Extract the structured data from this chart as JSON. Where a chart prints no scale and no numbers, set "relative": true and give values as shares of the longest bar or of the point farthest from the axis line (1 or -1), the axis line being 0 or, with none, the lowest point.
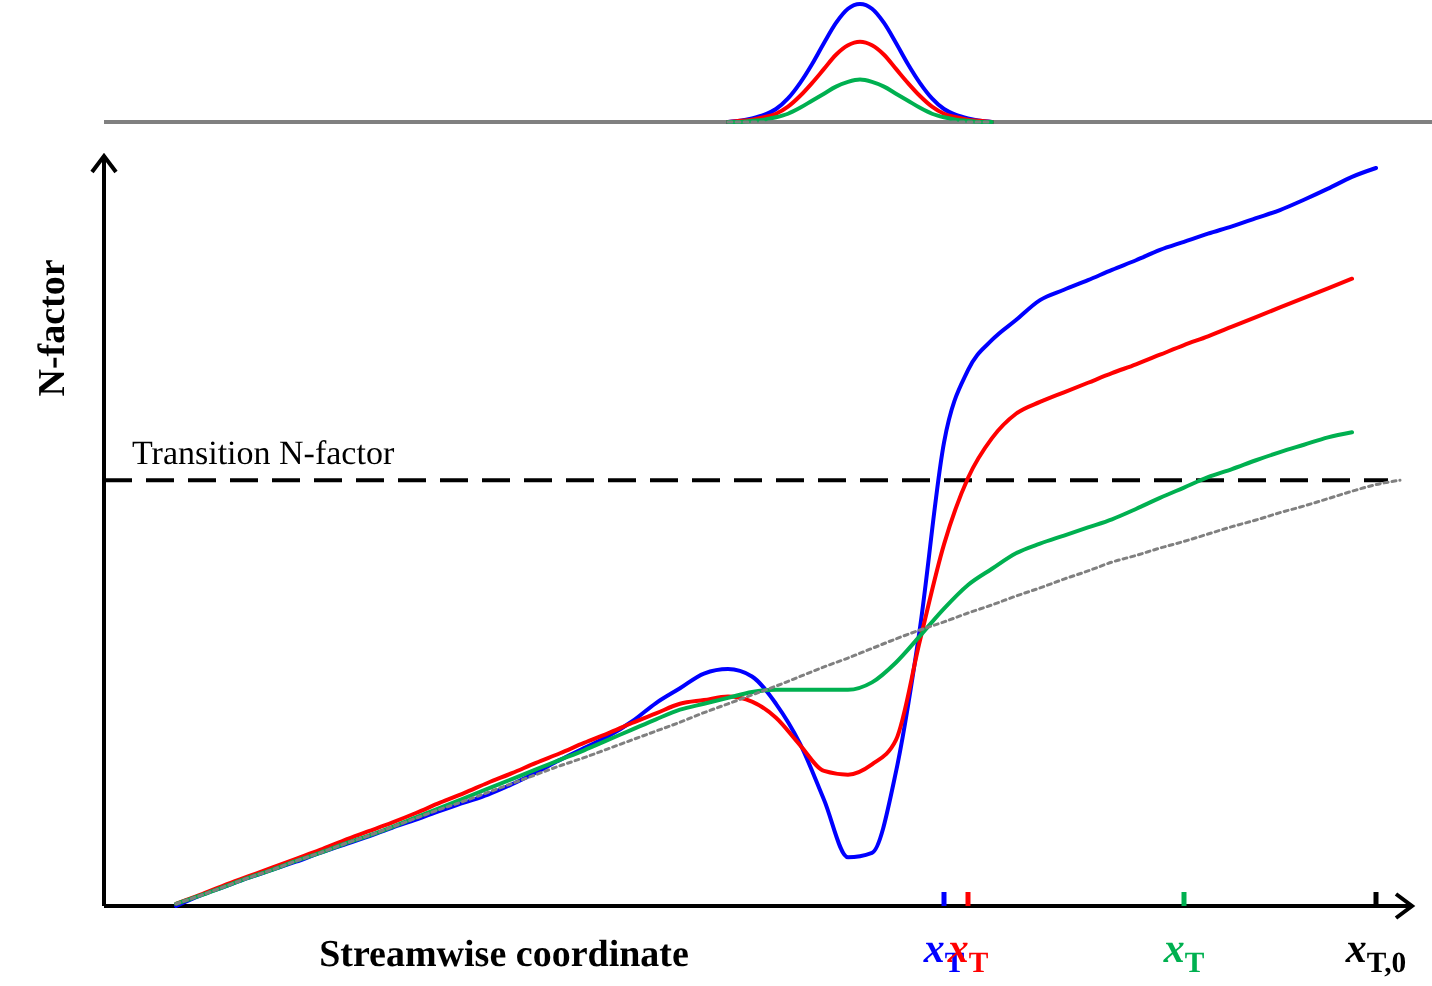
{
  "chart_data": [
    {
      "type": "line",
      "relative": true,
      "tick_labels": false,
      "marker": "none",
      "categories": [
        null,
        null,
        null,
        null,
        null,
        null,
        null,
        null,
        null,
        null,
        null,
        null,
        null,
        null,
        null,
        null,
        null,
        null,
        null,
        null,
        null,
        null,
        null,
        null,
        null,
        null,
        null,
        null,
        null,
        null,
        null,
        null,
        null,
        null,
        null,
        null,
        null,
        null,
        null,
        null,
        null,
        null,
        null,
        null,
        null,
        null,
        null,
        null,
        null,
        null,
        null,
        null,
        null,
        null,
        null,
        null,
        null,
        null,
        null,
        null,
        null,
        null,
        null,
        null,
        null,
        null,
        null,
        null,
        null,
        null,
        null,
        null,
        null,
        null,
        null,
        null,
        null,
        null,
        null,
        null,
        null,
        null,
        null,
        null,
        null,
        null,
        null,
        null,
        null,
        null,
        null,
        null,
        null,
        null,
        null,
        null,
        null,
        null,
        null,
        null,
        null,
        null,
        null,
        null,
        null,
        null,
        null,
        null,
        null
      ],
      "series": [
        {
          "color": "#0000ff",
          "values": [
            null,
            null,
            null,
            null,
            null,
            null,
            null,
            null,
            null,
            null,
            null,
            null,
            null,
            null,
            null,
            null,
            null,
            null,
            null,
            null,
            null,
            null,
            null,
            null,
            null,
            null,
            null,
            null,
            null,
            null,
            null,
            null,
            null,
            null,
            null,
            null,
            null,
            null,
            null,
            null,
            null,
            null,
            null,
            null,
            null,
            null,
            null,
            null,
            null,
            null,
            null,
            null,
            0,
            0.01,
            0.03,
            0.06,
            0.11,
            0.2,
            0.33,
            0.49,
            0.67,
            0.84,
            0.96,
            1,
            0.96,
            0.84,
            0.67,
            0.49,
            0.33,
            0.2,
            0.11,
            0.06,
            0.03,
            0.01,
            0,
            null,
            null,
            null,
            null,
            null,
            null,
            null,
            null,
            null,
            null,
            null,
            null,
            null,
            null,
            null,
            null,
            null,
            null,
            null,
            null,
            null,
            null,
            null,
            null,
            null,
            null,
            null,
            null,
            null,
            null,
            null,
            null,
            null,
            null
          ]
        },
        {
          "color": "#ff0000",
          "values": [
            null,
            null,
            null,
            null,
            null,
            null,
            null,
            null,
            null,
            null,
            null,
            null,
            null,
            null,
            null,
            null,
            null,
            null,
            null,
            null,
            null,
            null,
            null,
            null,
            null,
            null,
            null,
            null,
            null,
            null,
            null,
            null,
            null,
            null,
            null,
            null,
            null,
            null,
            null,
            null,
            null,
            null,
            null,
            null,
            null,
            null,
            null,
            null,
            null,
            null,
            null,
            null,
            0,
            0.01,
            0.02,
            0.04,
            0.07,
            0.13,
            0.22,
            0.33,
            0.45,
            0.57,
            0.65,
            0.68,
            0.65,
            0.57,
            0.45,
            0.33,
            0.22,
            0.13,
            0.07,
            0.04,
            0.02,
            0.01,
            0,
            null,
            null,
            null,
            null,
            null,
            null,
            null,
            null,
            null,
            null,
            null,
            null,
            null,
            null,
            null,
            null,
            null,
            null,
            null,
            null,
            null,
            null,
            null,
            null,
            null,
            null,
            null,
            null,
            null,
            null,
            null,
            null,
            null,
            null
          ]
        },
        {
          "color": "#00b050",
          "values": [
            null,
            null,
            null,
            null,
            null,
            null,
            null,
            null,
            null,
            null,
            null,
            null,
            null,
            null,
            null,
            null,
            null,
            null,
            null,
            null,
            null,
            null,
            null,
            null,
            null,
            null,
            null,
            null,
            null,
            null,
            null,
            null,
            null,
            null,
            null,
            null,
            null,
            null,
            null,
            null,
            null,
            null,
            null,
            null,
            null,
            null,
            null,
            null,
            null,
            null,
            null,
            null,
            0,
            0,
            0.01,
            0.02,
            0.04,
            0.07,
            0.12,
            0.18,
            0.24,
            0.3,
            0.34,
            0.36,
            0.34,
            0.3,
            0.24,
            0.18,
            0.12,
            0.07,
            0.04,
            0.02,
            0.01,
            0,
            0,
            null,
            null,
            null,
            null,
            null,
            null,
            null,
            null,
            null,
            null,
            null,
            null,
            null,
            null,
            null,
            null,
            null,
            null,
            null,
            null,
            null,
            null,
            null,
            null,
            null,
            null,
            null,
            null,
            null,
            null,
            null,
            null,
            null,
            null
          ]
        },
        {
          "color": "#808080",
          "line_style": "dotted",
          "values": [
            null,
            null,
            null,
            null,
            null,
            null,
            null,
            null,
            null,
            null,
            null,
            null,
            null,
            null,
            null,
            null,
            null,
            null,
            null,
            null,
            null,
            null,
            null,
            null,
            null,
            null,
            null,
            null,
            null,
            null,
            null,
            null,
            null,
            null,
            null,
            null,
            null,
            null,
            null,
            null,
            null,
            null,
            null,
            null,
            null,
            null,
            null,
            null,
            null,
            null,
            null,
            null,
            0,
            0,
            0,
            0,
            0,
            0,
            0,
            0,
            0,
            0,
            0,
            0,
            0,
            0,
            0,
            0,
            0,
            0,
            0,
            0,
            0,
            0,
            0,
            null,
            null,
            null,
            null,
            null,
            null,
            null,
            null,
            null,
            null,
            null,
            null,
            null,
            null,
            null,
            null,
            null,
            null,
            null,
            null,
            null,
            null,
            null,
            null,
            null,
            null,
            null,
            null,
            null,
            null,
            null,
            null,
            null,
            null
          ]
        }
      ]
    },
    {
      "type": "line",
      "relative": true,
      "xlabel": "Streamwise coordinate",
      "ylabel": "N-factor",
      "marker": "none",
      "tick_labels": "x",
      "categories": [
        null,
        null,
        null,
        null,
        null,
        null,
        null,
        null,
        null,
        null,
        null,
        null,
        null,
        null,
        null,
        null,
        null,
        null,
        null,
        null,
        null,
        null,
        null,
        null,
        null,
        null,
        null,
        null,
        null,
        null,
        null,
        null,
        null,
        null,
        null,
        "x$_{T}$",
        "x$_{T}$",
        null,
        null,
        null,
        null,
        null,
        null,
        null,
        null,
        "x$_{T}$",
        null,
        null,
        null,
        null,
        null,
        null,
        null,
        "x$_{T,0}$",
        null
      ],
      "ref_lines": [
        {
          "axis": "y",
          "value": 0.577,
          "label": "Transition N-factor",
          "line_style": "dashed",
          "color": "#000000"
        }
      ],
      "series": [
        {
          "color": "#0000ff",
          "values": [
            null,
            null,
            null,
            0,
            0.014,
            0.026,
            0.038,
            0.049,
            0.06,
            0.072,
            0.083,
            0.094,
            0.106,
            0.117,
            0.129,
            0.14,
            0.151,
            0.165,
            0.181,
            0.198,
            0.214,
            0.23,
            0.25,
            0.275,
            0.295,
            0.315,
            0.321,
            0.311,
            0.274,
            0.22,
            0.144,
            0.066,
            0.072,
            0.182,
            0.377,
            0.628,
            0.726,
            0.767,
            0.794,
            0.821,
            0.835,
            0.848,
            0.862,
            0.875,
            0.889,
            0.9,
            0.911,
            0.921,
            0.932,
            0.943,
            0.957,
            0.972,
            0.988,
            1,
            null
          ]
        },
        {
          "color": "#ff0000",
          "values": [
            null,
            null,
            null,
            0.003,
            0.015,
            0.028,
            0.04,
            0.052,
            0.064,
            0.076,
            0.089,
            0.101,
            0.113,
            0.126,
            0.14,
            0.153,
            0.167,
            0.18,
            0.194,
            0.207,
            0.221,
            0.234,
            0.248,
            0.261,
            0.274,
            0.279,
            0.284,
            0.277,
            0.255,
            0.218,
            0.183,
            0.178,
            0.192,
            0.225,
            0.36,
            0.49,
            0.58,
            0.634,
            0.667,
            0.683,
            0.696,
            0.709,
            0.722,
            0.734,
            0.747,
            0.76,
            0.772,
            0.785,
            0.798,
            0.811,
            0.824,
            0.837,
            0.85,
            null,
            null
          ]
        },
        {
          "color": "#00b050",
          "values": [
            null,
            null,
            null,
            0.003,
            0.014,
            0.026,
            0.038,
            0.049,
            0.061,
            0.072,
            0.084,
            0.095,
            0.107,
            0.12,
            0.133,
            0.146,
            0.159,
            0.172,
            0.185,
            0.198,
            0.211,
            0.225,
            0.239,
            0.253,
            0.266,
            0.274,
            0.282,
            0.29,
            0.293,
            0.293,
            0.293,
            0.293,
            0.303,
            0.33,
            0.366,
            0.403,
            0.435,
            0.457,
            0.478,
            0.491,
            0.502,
            0.513,
            0.524,
            0.538,
            0.553,
            0.567,
            0.581,
            0.592,
            0.604,
            0.615,
            0.625,
            0.635,
            0.642,
            null,
            null
          ]
        },
        {
          "color": "#808080",
          "line_style": "dotted",
          "values": [
            null,
            null,
            null,
            0.003,
            0.014,
            0.026,
            0.038,
            0.049,
            0.061,
            0.072,
            0.084,
            0.095,
            0.107,
            0.119,
            0.131,
            0.142,
            0.154,
            0.166,
            0.178,
            0.19,
            0.201,
            0.213,
            0.225,
            0.237,
            0.249,
            0.262,
            0.274,
            0.286,
            0.298,
            0.311,
            0.324,
            0.336,
            0.349,
            0.362,
            0.374,
            0.385,
            0.397,
            0.408,
            0.42,
            0.431,
            0.443,
            0.454,
            0.466,
            0.475,
            0.485,
            0.494,
            0.504,
            0.514,
            0.523,
            0.533,
            0.542,
            0.552,
            0.562,
            0.571,
            0.577
          ]
        }
      ]
    }
  ]
}
